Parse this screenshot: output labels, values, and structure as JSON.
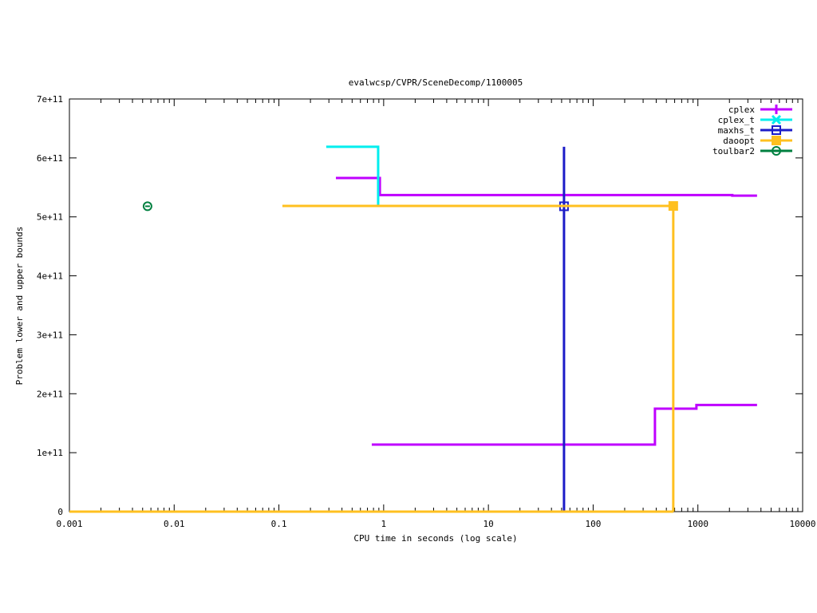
{
  "chart_data": {
    "type": "line",
    "title": "evalwcsp/CVPR/SceneDecomp/1100005",
    "xlabel": "CPU time in seconds (log scale)",
    "ylabel": "Problem lower and upper bounds",
    "xscale": "log",
    "xlim": [
      0.001,
      10000
    ],
    "ylim": [
      0,
      700000000000
    ],
    "xticks": [
      {
        "v": 0.001,
        "label": "0.001"
      },
      {
        "v": 0.01,
        "label": "0.01"
      },
      {
        "v": 0.1,
        "label": "0.1"
      },
      {
        "v": 1,
        "label": "1"
      },
      {
        "v": 10,
        "label": "10"
      },
      {
        "v": 100,
        "label": "100"
      },
      {
        "v": 1000,
        "label": "1000"
      },
      {
        "v": 10000,
        "label": "10000"
      }
    ],
    "yticks": [
      {
        "v": 0,
        "label": "0"
      },
      {
        "v": 100000000000,
        "label": "1e+11"
      },
      {
        "v": 200000000000,
        "label": "2e+11"
      },
      {
        "v": 300000000000,
        "label": "3e+11"
      },
      {
        "v": 400000000000,
        "label": "4e+11"
      },
      {
        "v": 500000000000,
        "label": "5e+11"
      },
      {
        "v": 600000000000,
        "label": "6e+11"
      },
      {
        "v": 700000000000,
        "label": "7e+11"
      }
    ],
    "legend_position": "top-right",
    "grid": false,
    "series": [
      {
        "name": "cplex",
        "color": "#bf00ff",
        "marker": "plus",
        "lines": [
          [
            [
              0.35,
              566000000000
            ],
            [
              0.92,
              566000000000
            ],
            [
              0.92,
              537000000000
            ],
            [
              2130,
              537000000000
            ],
            [
              2130,
              536000000000
            ],
            [
              3670,
              536000000000
            ]
          ],
          [
            [
              0.77,
              113700000000
            ],
            [
              389,
              113700000000
            ],
            [
              389,
              174600000000
            ],
            [
              968,
              174600000000
            ],
            [
              968,
              181000000000
            ],
            [
              3670,
              181000000000
            ]
          ]
        ]
      },
      {
        "name": "cplex_t",
        "color": "#00eeee",
        "marker": "x",
        "lines": [
          [
            [
              0.283,
              619000000000
            ],
            [
              0.886,
              619000000000
            ],
            [
              0.886,
              518000000000
            ]
          ]
        ]
      },
      {
        "name": "maxhs_t",
        "color": "#1c1cc8",
        "marker": "square",
        "lines": [
          [
            [
              52.7,
              0
            ],
            [
              52.7,
              619000000000
            ]
          ]
        ],
        "points": [
          [
            52.7,
            518000000000
          ]
        ]
      },
      {
        "name": "daoopt",
        "color": "#ffc020",
        "marker": "filled-square",
        "lines": [
          [
            [
              0.108,
              518500000000
            ],
            [
              582,
              518500000000
            ],
            [
              582,
              0
            ]
          ],
          [
            [
              0.001,
              0
            ],
            [
              582,
              0
            ]
          ]
        ],
        "points": [
          [
            582,
            518500000000
          ]
        ]
      },
      {
        "name": "toulbar2",
        "color": "#008040",
        "marker": "circle",
        "lines": [],
        "points": [
          [
            0.00557,
            518000000000
          ]
        ]
      }
    ]
  }
}
